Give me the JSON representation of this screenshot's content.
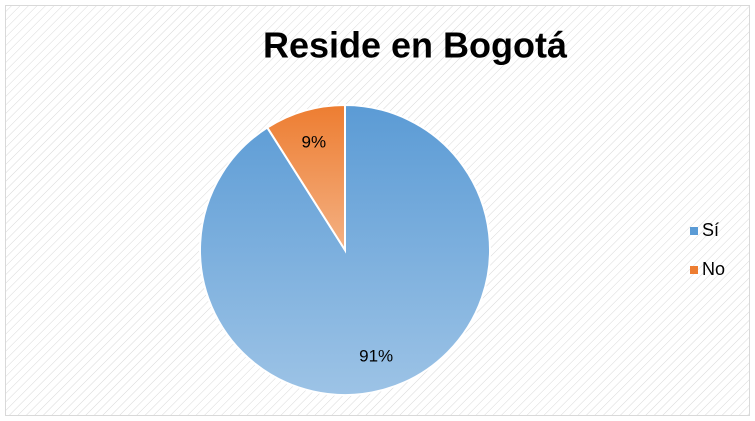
{
  "chart_data": {
    "type": "pie",
    "title": "Reside en Bogotá",
    "categories": [
      "Sí",
      "No"
    ],
    "values": [
      91,
      9
    ],
    "value_labels": [
      "91%",
      "9%"
    ],
    "colors": [
      "#5b9bd5",
      "#ed7d31"
    ],
    "legend": "right"
  }
}
